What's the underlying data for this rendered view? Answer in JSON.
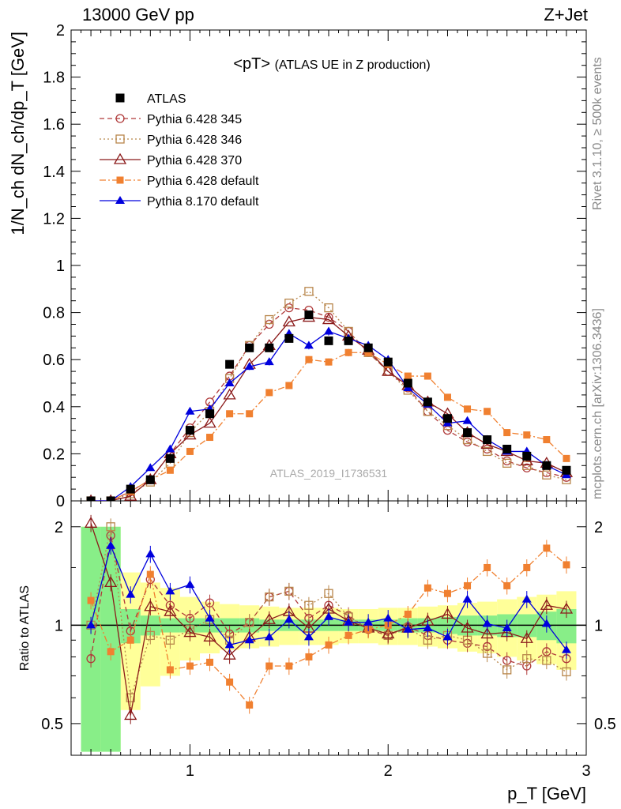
{
  "header": {
    "collision": "13000 GeV pp",
    "process": "Z+Jet"
  },
  "side": {
    "rivet": "Rivet 3.1.10, ≥ 500k events",
    "mcplots": "mcplots.cern.ch [arXiv:1306.3436]"
  },
  "chart_data": [
    {
      "type": "scatter",
      "panel": "main",
      "title": "<pT>",
      "subtitle": "(ATLAS UE in Z production)",
      "watermark": "ATLAS_2019_I1736531",
      "ylabel": "1/N_ch dN_ch/dp_T [GeV]",
      "ylim": [
        0,
        2
      ],
      "xlim": [
        0.4,
        3.0
      ],
      "yticks": [
        "0",
        "0.2",
        "0.4",
        "0.6",
        "0.8",
        "1",
        "1.2",
        "1.4",
        "1.6",
        "1.8",
        "2"
      ],
      "legend_position": "top-left",
      "x": [
        0.5,
        0.6,
        0.7,
        0.8,
        0.9,
        1.0,
        1.1,
        1.2,
        1.3,
        1.4,
        1.5,
        1.6,
        1.7,
        1.8,
        1.9,
        2.0,
        2.1,
        2.2,
        2.3,
        2.4,
        2.5,
        2.6,
        2.7,
        2.8,
        2.9
      ],
      "series": [
        {
          "name": "ATLAS",
          "color": "#000000",
          "marker": "filled-square",
          "line": "none",
          "values": [
            0.0,
            0.0,
            0.05,
            0.09,
            0.18,
            0.3,
            0.37,
            0.58,
            0.65,
            0.65,
            0.69,
            0.79,
            0.68,
            0.68,
            0.65,
            0.59,
            0.5,
            0.42,
            0.35,
            0.29,
            0.26,
            0.22,
            0.19,
            0.15,
            0.13
          ]
        },
        {
          "name": "Pythia 6.428 345",
          "color": "#b03a3a",
          "marker": "open-circle",
          "line": "dashed",
          "values": [
            0.0,
            0.0,
            0.04,
            0.09,
            0.2,
            0.31,
            0.42,
            0.53,
            0.66,
            0.75,
            0.82,
            0.81,
            0.78,
            0.72,
            0.63,
            0.55,
            0.48,
            0.38,
            0.3,
            0.25,
            0.22,
            0.17,
            0.14,
            0.12,
            0.1
          ]
        },
        {
          "name": "Pythia 6.428 346",
          "color": "#b8864b",
          "marker": "open-square",
          "line": "dotted",
          "values": [
            0.0,
            0.0,
            0.03,
            0.08,
            0.16,
            0.29,
            0.38,
            0.52,
            0.66,
            0.77,
            0.84,
            0.89,
            0.82,
            0.72,
            0.63,
            0.55,
            0.47,
            0.38,
            0.32,
            0.26,
            0.21,
            0.16,
            0.15,
            0.11,
            0.09
          ]
        },
        {
          "name": "Pythia 6.428 370",
          "color": "#8b1a1a",
          "marker": "open-triangle",
          "line": "solid",
          "values": [
            0.0,
            0.0,
            0.02,
            0.09,
            0.2,
            0.28,
            0.33,
            0.45,
            0.58,
            0.66,
            0.76,
            0.78,
            0.77,
            0.7,
            0.64,
            0.55,
            0.49,
            0.42,
            0.37,
            0.29,
            0.24,
            0.21,
            0.17,
            0.16,
            0.12
          ]
        },
        {
          "name": "Pythia 6.428 default",
          "color": "#f08030",
          "marker": "filled-small-square",
          "line": "dashdot",
          "values": [
            0.0,
            0.0,
            0.04,
            0.09,
            0.13,
            0.21,
            0.27,
            0.37,
            0.37,
            0.46,
            0.49,
            0.6,
            0.59,
            0.63,
            0.63,
            0.58,
            0.53,
            0.53,
            0.44,
            0.39,
            0.38,
            0.29,
            0.28,
            0.26,
            0.18
          ]
        },
        {
          "name": "Pythia 8.170 default",
          "color": "#0000dd",
          "marker": "filled-triangle",
          "line": "solid",
          "values": [
            0.0,
            0.0,
            0.06,
            0.14,
            0.22,
            0.38,
            0.39,
            0.5,
            0.57,
            0.59,
            0.71,
            0.66,
            0.72,
            0.69,
            0.66,
            0.6,
            0.48,
            0.41,
            0.33,
            0.34,
            0.26,
            0.21,
            0.21,
            0.15,
            0.11
          ]
        }
      ]
    },
    {
      "type": "scatter",
      "panel": "ratio",
      "ylabel": "Ratio to ATLAS",
      "ylim": [
        0.4,
        2.4
      ],
      "log_y": true,
      "xlim": [
        0.4,
        3.0
      ],
      "xlabel": "p_T [GeV]",
      "xticks": [
        "1",
        "2",
        "3"
      ],
      "yticks": [
        "0.5",
        "1",
        "2"
      ],
      "x": [
        0.5,
        0.6,
        0.7,
        0.8,
        0.9,
        1.0,
        1.1,
        1.2,
        1.3,
        1.4,
        1.5,
        1.6,
        1.7,
        1.8,
        1.9,
        2.0,
        2.1,
        2.2,
        2.3,
        2.4,
        2.5,
        2.6,
        2.7,
        2.8,
        2.9
      ],
      "band_green_halfwidth": [
        1.0,
        1.0,
        0.12,
        0.07,
        0.05,
        0.05,
        0.05,
        0.05,
        0.05,
        0.04,
        0.04,
        0.04,
        0.04,
        0.04,
        0.04,
        0.04,
        0.05,
        0.05,
        0.06,
        0.07,
        0.07,
        0.08,
        0.08,
        0.1,
        0.12
      ],
      "band_yellow_halfwidth": [
        1.0,
        1.0,
        0.45,
        0.35,
        0.3,
        0.22,
        0.18,
        0.16,
        0.15,
        0.14,
        0.13,
        0.13,
        0.13,
        0.12,
        0.12,
        0.13,
        0.13,
        0.14,
        0.15,
        0.17,
        0.18,
        0.2,
        0.22,
        0.24,
        0.27
      ],
      "series": [
        {
          "name": "Pythia 6.428 345",
          "color": "#b03a3a",
          "values": [
            0.79,
            1.88,
            0.96,
            1.38,
            1.15,
            1.05,
            1.17,
            0.94,
            1.02,
            1.22,
            1.27,
            1.05,
            1.15,
            1.07,
            0.97,
            0.93,
            0.99,
            0.93,
            0.9,
            0.88,
            0.86,
            0.78,
            0.75,
            0.83,
            0.79
          ]
        },
        {
          "name": "Pythia 6.428 346",
          "color": "#b8864b",
          "values": [
            1.0,
            2.0,
            0.6,
            0.93,
            0.9,
            0.97,
            1.04,
            0.9,
            1.02,
            1.22,
            1.27,
            1.15,
            1.25,
            1.06,
            0.98,
            0.93,
            0.98,
            0.9,
            0.93,
            0.9,
            0.82,
            0.73,
            0.79,
            0.78,
            0.72
          ]
        },
        {
          "name": "Pythia 6.428 370",
          "color": "#8b1a1a",
          "values": [
            2.05,
            1.35,
            0.53,
            1.14,
            1.1,
            0.95,
            0.92,
            0.81,
            0.92,
            1.04,
            1.1,
            0.98,
            1.12,
            1.03,
            0.98,
            0.94,
            0.98,
            1.03,
            1.08,
            0.98,
            0.94,
            0.95,
            0.91,
            1.15,
            1.12
          ]
        },
        {
          "name": "Pythia 6.428 default",
          "color": "#f08030",
          "values": [
            1.19,
            0.83,
            0.9,
            1.43,
            0.73,
            0.75,
            0.77,
            0.67,
            0.57,
            0.75,
            0.75,
            0.8,
            0.87,
            0.93,
            0.97,
            1.0,
            1.08,
            1.3,
            1.25,
            1.32,
            1.5,
            1.32,
            1.5,
            1.72,
            1.53
          ]
        },
        {
          "name": "Pythia 8.170 default",
          "color": "#0000dd",
          "values": [
            1.0,
            1.75,
            1.24,
            1.65,
            1.27,
            1.33,
            1.05,
            0.87,
            0.9,
            0.92,
            1.04,
            0.92,
            1.06,
            1.02,
            1.02,
            1.05,
            0.97,
            0.98,
            0.92,
            1.2,
            1.01,
            0.98,
            1.2,
            1.01,
            0.84
          ]
        }
      ]
    }
  ]
}
